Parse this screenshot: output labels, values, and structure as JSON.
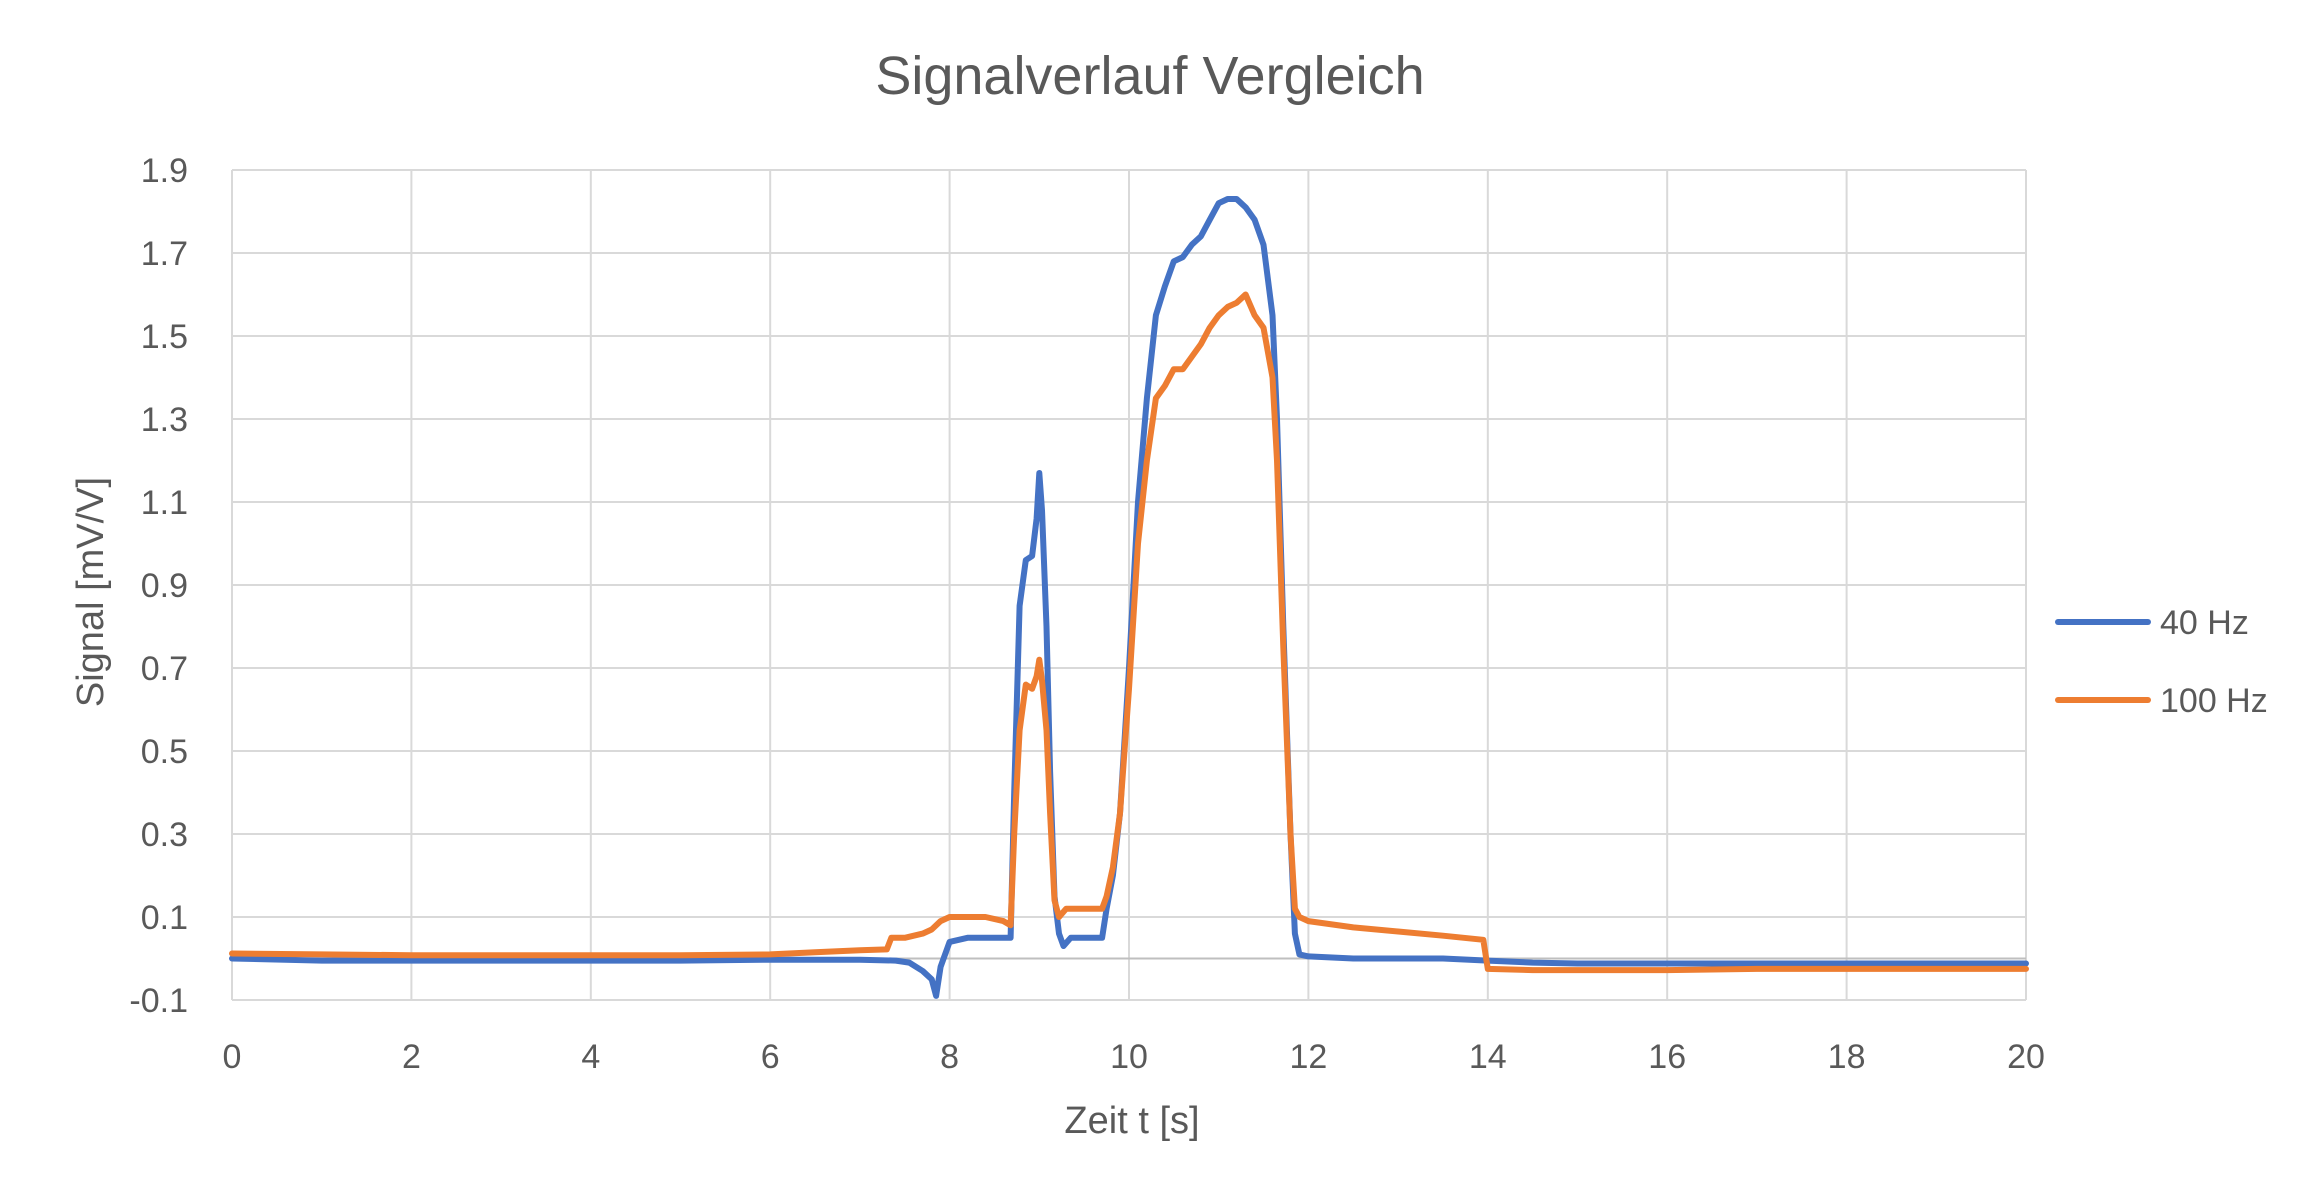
{
  "chart_data": {
    "type": "line",
    "title": "Signalverlauf Vergleich",
    "xlabel": "Zeit t [s]",
    "ylabel": "Signal [mV/V]",
    "xlim": [
      0,
      20
    ],
    "ylim": [
      -0.1,
      1.9
    ],
    "x_ticks": [
      0,
      2,
      4,
      6,
      8,
      10,
      12,
      14,
      16,
      18,
      20
    ],
    "y_ticks": [
      -0.1,
      0.1,
      0.3,
      0.5,
      0.7,
      0.9,
      1.1,
      1.3,
      1.5,
      1.7,
      1.9
    ],
    "x_tick_labels": [
      "0",
      "2",
      "4",
      "6",
      "8",
      "10",
      "12",
      "14",
      "16",
      "18",
      "20"
    ],
    "y_tick_labels": [
      "-0.1",
      "0.1",
      "0.3",
      "0.5",
      "0.7",
      "0.9",
      "1.1",
      "1.3",
      "1.5",
      "1.7",
      "1.9"
    ],
    "grid": true,
    "legend_position": "right",
    "series": [
      {
        "name": "40 Hz",
        "color": "#4472c4",
        "points": [
          [
            0,
            0.0
          ],
          [
            1,
            -0.005
          ],
          [
            2,
            -0.005
          ],
          [
            3,
            -0.005
          ],
          [
            4,
            -0.005
          ],
          [
            5,
            -0.005
          ],
          [
            6,
            -0.003
          ],
          [
            7,
            -0.003
          ],
          [
            7.4,
            -0.005
          ],
          [
            7.55,
            -0.01
          ],
          [
            7.7,
            -0.03
          ],
          [
            7.8,
            -0.05
          ],
          [
            7.85,
            -0.09
          ],
          [
            7.9,
            -0.02
          ],
          [
            8.0,
            0.04
          ],
          [
            8.2,
            0.05
          ],
          [
            8.4,
            0.05
          ],
          [
            8.6,
            0.05
          ],
          [
            8.68,
            0.05
          ],
          [
            8.72,
            0.4
          ],
          [
            8.78,
            0.85
          ],
          [
            8.85,
            0.96
          ],
          [
            8.92,
            0.97
          ],
          [
            8.97,
            1.06
          ],
          [
            9.0,
            1.17
          ],
          [
            9.03,
            1.08
          ],
          [
            9.08,
            0.8
          ],
          [
            9.12,
            0.45
          ],
          [
            9.17,
            0.15
          ],
          [
            9.22,
            0.06
          ],
          [
            9.27,
            0.03
          ],
          [
            9.35,
            0.05
          ],
          [
            9.5,
            0.05
          ],
          [
            9.7,
            0.05
          ],
          [
            9.75,
            0.12
          ],
          [
            9.82,
            0.2
          ],
          [
            9.9,
            0.35
          ],
          [
            10.0,
            0.7
          ],
          [
            10.1,
            1.1
          ],
          [
            10.2,
            1.35
          ],
          [
            10.3,
            1.55
          ],
          [
            10.4,
            1.62
          ],
          [
            10.5,
            1.68
          ],
          [
            10.6,
            1.69
          ],
          [
            10.7,
            1.72
          ],
          [
            10.8,
            1.74
          ],
          [
            10.9,
            1.78
          ],
          [
            11.0,
            1.82
          ],
          [
            11.1,
            1.83
          ],
          [
            11.2,
            1.83
          ],
          [
            11.3,
            1.81
          ],
          [
            11.4,
            1.78
          ],
          [
            11.5,
            1.72
          ],
          [
            11.6,
            1.55
          ],
          [
            11.65,
            1.3
          ],
          [
            11.72,
            0.8
          ],
          [
            11.8,
            0.3
          ],
          [
            11.85,
            0.06
          ],
          [
            11.9,
            0.01
          ],
          [
            12.0,
            0.005
          ],
          [
            12.5,
            0.0
          ],
          [
            13.0,
            0.0
          ],
          [
            13.5,
            0.0
          ],
          [
            14.0,
            -0.005
          ],
          [
            14.5,
            -0.01
          ],
          [
            15,
            -0.012
          ],
          [
            16,
            -0.012
          ],
          [
            17,
            -0.012
          ],
          [
            18,
            -0.012
          ],
          [
            19,
            -0.012
          ],
          [
            20,
            -0.012
          ]
        ]
      },
      {
        "name": "100 Hz",
        "color": "#ed7d31",
        "points": [
          [
            0,
            0.012
          ],
          [
            1,
            0.01
          ],
          [
            2,
            0.008
          ],
          [
            3,
            0.008
          ],
          [
            4,
            0.008
          ],
          [
            5,
            0.008
          ],
          [
            6,
            0.01
          ],
          [
            6.5,
            0.015
          ],
          [
            7.0,
            0.02
          ],
          [
            7.3,
            0.022
          ],
          [
            7.35,
            0.05
          ],
          [
            7.5,
            0.05
          ],
          [
            7.7,
            0.06
          ],
          [
            7.8,
            0.07
          ],
          [
            7.9,
            0.09
          ],
          [
            8.0,
            0.1
          ],
          [
            8.2,
            0.1
          ],
          [
            8.4,
            0.1
          ],
          [
            8.6,
            0.09
          ],
          [
            8.68,
            0.08
          ],
          [
            8.72,
            0.3
          ],
          [
            8.78,
            0.55
          ],
          [
            8.85,
            0.66
          ],
          [
            8.92,
            0.65
          ],
          [
            8.97,
            0.68
          ],
          [
            9.0,
            0.72
          ],
          [
            9.03,
            0.67
          ],
          [
            9.08,
            0.55
          ],
          [
            9.12,
            0.35
          ],
          [
            9.17,
            0.14
          ],
          [
            9.22,
            0.1
          ],
          [
            9.3,
            0.12
          ],
          [
            9.5,
            0.12
          ],
          [
            9.7,
            0.12
          ],
          [
            9.75,
            0.15
          ],
          [
            9.82,
            0.22
          ],
          [
            9.9,
            0.35
          ],
          [
            10.0,
            0.65
          ],
          [
            10.1,
            1.0
          ],
          [
            10.2,
            1.2
          ],
          [
            10.3,
            1.35
          ],
          [
            10.4,
            1.38
          ],
          [
            10.5,
            1.42
          ],
          [
            10.6,
            1.42
          ],
          [
            10.7,
            1.45
          ],
          [
            10.8,
            1.48
          ],
          [
            10.9,
            1.52
          ],
          [
            11.0,
            1.55
          ],
          [
            11.1,
            1.57
          ],
          [
            11.2,
            1.58
          ],
          [
            11.3,
            1.6
          ],
          [
            11.4,
            1.55
          ],
          [
            11.5,
            1.52
          ],
          [
            11.6,
            1.4
          ],
          [
            11.65,
            1.2
          ],
          [
            11.72,
            0.75
          ],
          [
            11.8,
            0.3
          ],
          [
            11.85,
            0.12
          ],
          [
            11.9,
            0.1
          ],
          [
            12.0,
            0.09
          ],
          [
            12.5,
            0.075
          ],
          [
            13.0,
            0.065
          ],
          [
            13.5,
            0.055
          ],
          [
            13.95,
            0.045
          ],
          [
            14.0,
            -0.025
          ],
          [
            14.5,
            -0.028
          ],
          [
            15,
            -0.028
          ],
          [
            16,
            -0.028
          ],
          [
            17,
            -0.025
          ],
          [
            18,
            -0.025
          ],
          [
            19,
            -0.025
          ],
          [
            20,
            -0.025
          ]
        ]
      }
    ]
  }
}
